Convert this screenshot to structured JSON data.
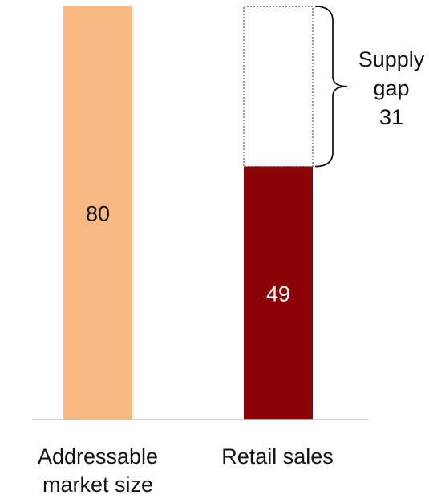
{
  "chart_data": {
    "type": "bar",
    "categories": [
      "Addressable\nmarket size",
      "Retail sales"
    ],
    "values": [
      80,
      49
    ],
    "data_labels": [
      "80",
      "49"
    ],
    "ylim": [
      0,
      80
    ],
    "grid": false,
    "gap": {
      "value": 31,
      "label": "Supply\ngap\n31"
    }
  },
  "colors": {
    "bar_1": "#f8ba80",
    "bar_2": "#8b0508",
    "label_on_bar_1": "#111111",
    "label_on_bar_2": "#ffffff",
    "axis": "#c8c8c8",
    "gap_outline": "#555555",
    "brace": "#000000"
  }
}
